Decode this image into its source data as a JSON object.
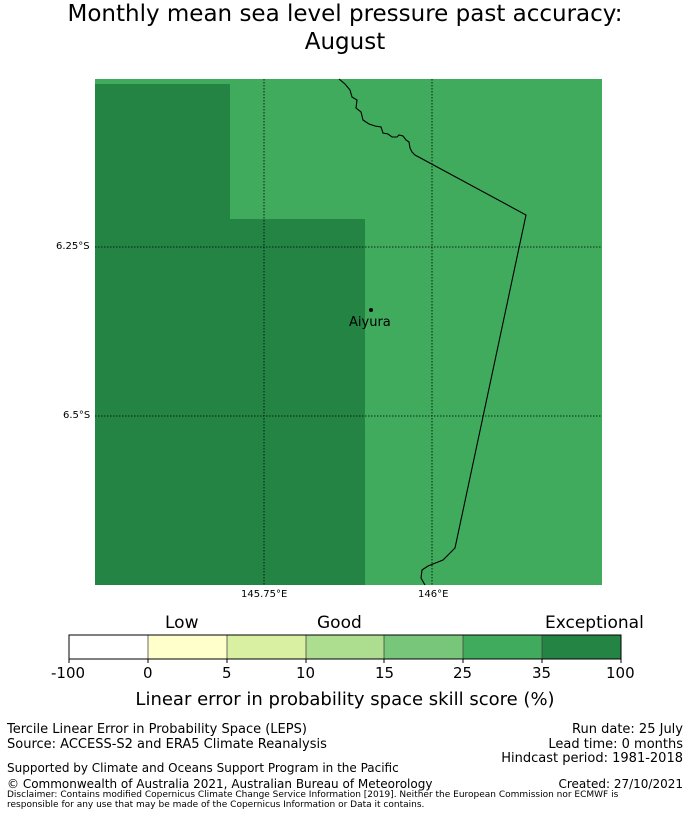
{
  "title_line1": "Monthly mean sea level pressure past accuracy:",
  "title_line2": "August",
  "map": {
    "lat_labels": [
      "6.25°S",
      "6.5°S"
    ],
    "lon_labels": [
      "145.75°E",
      "146°E"
    ],
    "place_name": "Aiyura",
    "colors": {
      "dark_green": "#238443",
      "mid_green": "#41ab5d"
    }
  },
  "colorbar": {
    "categories": [
      "Low",
      "Good",
      "Exceptional"
    ],
    "ticks": [
      "-100",
      "0",
      "5",
      "10",
      "15",
      "25",
      "35",
      "100"
    ],
    "colors": [
      "#ffffff",
      "#ffffcc",
      "#d9f0a3",
      "#addd8e",
      "#78c679",
      "#41ab5d",
      "#238443"
    ],
    "title": "Linear error in probability space skill score (%)"
  },
  "footer": {
    "method": "Tercile Linear Error in Probability Space (LEPS)",
    "source": "Source: ACCESS-S2 and ERA5 Climate Reanalysis",
    "run_date": "Run date: 25 July",
    "lead_time": "Lead time: 0 months",
    "hindcast": "Hindcast period: 1981-2018",
    "support": "Supported by Climate and Oceans Support Program in the Pacific",
    "copyright": "© Commonwealth of Australia 2021, Australian Bureau of Meteorology",
    "created": "Created: 27/10/2021",
    "disclaimer": "Disclaimer: Contains modified Copernicus Climate Change Service Information [2019]. Neither the European Commission nor ECMWF is responsible for any use that may be made of the Copernicus Information or Data it contains."
  }
}
